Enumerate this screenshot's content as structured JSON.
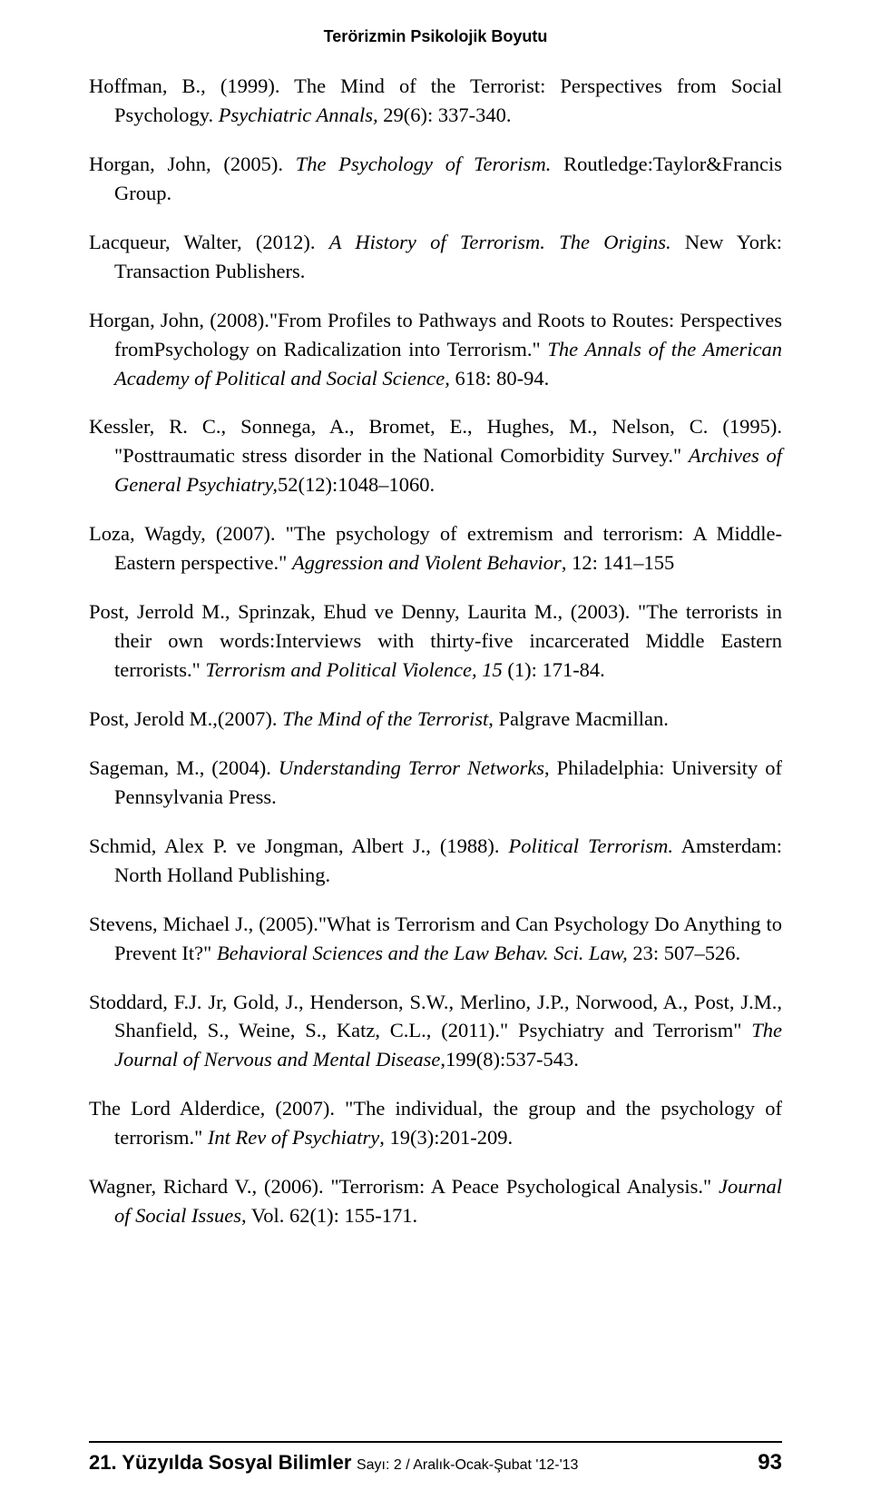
{
  "page": {
    "header_title": "Terörizmin Psikolojik Boyutu",
    "footer": {
      "journal_title": "21. Yüzyılda Sosyal Bilimler",
      "issue_info": "Sayı: 2 / Aralık-Ocak-Şubat '12-'13",
      "page_number": "93"
    }
  },
  "references": [
    {
      "pre": "Hoffman, B., (1999). The Mind of the Terrorist: Perspectives from Social Psychology. ",
      "italic": "Psychiatric Annals,",
      "post": " 29(6): 337-340."
    },
    {
      "pre": "Horgan, John, (2005). ",
      "italic": "The Psychology of Terorism.",
      "post": " Routledge:Taylor&Francis Group."
    },
    {
      "pre": "Lacqueur, Walter, (2012). ",
      "italic": "A History of Terrorism. The Origins.",
      "post": " New York: Transaction Publishers."
    },
    {
      "pre": "Horgan, John, (2008).\"From Profiles to Pathways and Roots to Routes: Perspectives fromPsychology on Radicalization into Terrorism.\" ",
      "italic": "The Annals of the American Academy of Political and Social Science,",
      "post": " 618: 80-94."
    },
    {
      "pre": "Kessler, R. C., Sonnega, A., Bromet, E., Hughes, M., Nelson, C. (1995). \"Posttraumatic stress disorder in the National Comorbidity Survey.\" ",
      "italic": "Archives of General Psychiatry,",
      "post": "52(12):1048–1060."
    },
    {
      "pre": "Loza, Wagdy, (2007). \"The psychology of extremism and terrorism: A Middle-Eastern perspective.\" ",
      "italic": "Aggression and Violent Behavior",
      "post": ", 12: 141–155"
    },
    {
      "pre": "Post, Jerrold M., Sprinzak, Ehud ve Denny, Laurita M., (2003). \"The terrorists in their own words:Interviews with thirty-five incarcerated Middle Eastern terrorists.\" ",
      "italic": "Terrorism and Political Violence, 15",
      "post": " (1): 171-84."
    },
    {
      "pre": "Post, Jerold M.,(2007). ",
      "italic": "The Mind of the Terrorist",
      "post": ", Palgrave Macmillan."
    },
    {
      "pre": "Sageman, M., (2004). ",
      "italic": "Understanding Terror Networks",
      "post": ", Philadelphia: University of Pennsylvania Press."
    },
    {
      "pre": "Schmid, Alex P. ve Jongman, Albert J., (1988). ",
      "italic": "Political Terrorism.",
      "post": " Amsterdam: North Holland Publishing."
    },
    {
      "pre": " Stevens, Michael J., (2005).\"What is Terrorism and Can Psychology Do Anything to Prevent It?\" ",
      "italic": "Behavioral Sciences and the Law Behav. Sci. Law,",
      "post": " 23: 507–526."
    },
    {
      "pre": "Stoddard, F.J. Jr, Gold, J., Henderson, S.W., Merlino, J.P., Norwood, A., Post, J.M., Shanfield, S., Weine, S., Katz, C.L., (2011).\" Psychiatry and Terrorism\" ",
      "italic": "The Journal of Nervous and Mental Disease",
      "post": ",199(8):537-543."
    },
    {
      "pre": "The Lord Alderdice, (2007). \"The individual, the group and the psychology of terrorism.\" ",
      "italic": "Int Rev of Psychiatry",
      "post": ", 19(3):201-209."
    },
    {
      "pre": "Wagner, Richard V., (2006). \"Terrorism: A Peace Psychological Analysis.\" ",
      "italic": "Journal of Social Issues",
      "post": ", Vol. 62(1): 155-171."
    }
  ]
}
